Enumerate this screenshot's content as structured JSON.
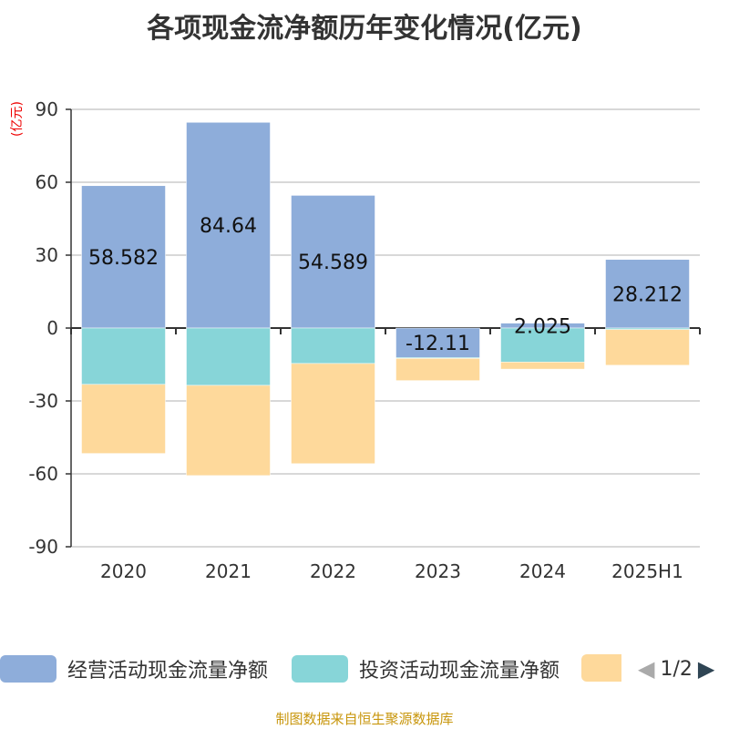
{
  "chart_data": {
    "type": "bar",
    "stacked": true,
    "title": "各项现金流净额历年变化情况(亿元)",
    "ylabel": "(亿元)",
    "ylim": [
      -90,
      90
    ],
    "yticks": [
      90,
      60,
      30,
      0,
      -30,
      -60,
      -90
    ],
    "grid": true,
    "categories": [
      "2020",
      "2021",
      "2022",
      "2023",
      "2024",
      "2025H1"
    ],
    "series": [
      {
        "name": "经营活动现金流量净额",
        "color": "#8eadda",
        "values": [
          58.582,
          84.64,
          54.589,
          -12.11,
          2.025,
          28.212
        ],
        "labels": [
          "58.582",
          "84.64",
          "54.589",
          "-12.11",
          "2.025",
          "28.212"
        ]
      },
      {
        "name": "投资活动现金流量净额",
        "color": "#87d5d8",
        "values": [
          -23.2,
          -23.6,
          -14.6,
          -0.4,
          -14.0,
          -0.6
        ]
      },
      {
        "name": "",
        "color": "#fed99b",
        "values": [
          -28.4,
          -37.1,
          -41.2,
          -9.1,
          -2.9,
          -14.7
        ]
      }
    ],
    "legend_position": "bottom",
    "legend_page": "1/2"
  },
  "source": "制图数据来自恒生聚源数据库"
}
